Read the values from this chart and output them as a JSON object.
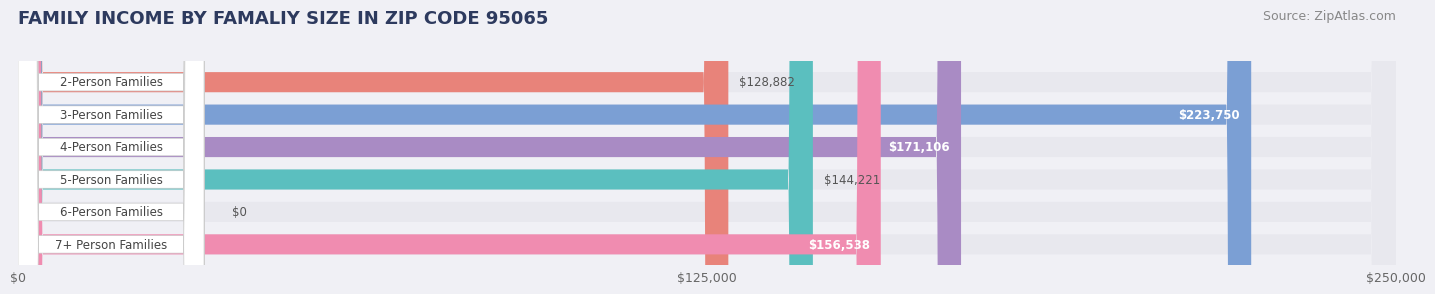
{
  "title": "FAMILY INCOME BY FAMALIY SIZE IN ZIP CODE 95065",
  "source": "Source: ZipAtlas.com",
  "categories": [
    "2-Person Families",
    "3-Person Families",
    "4-Person Families",
    "5-Person Families",
    "6-Person Families",
    "7+ Person Families"
  ],
  "values": [
    128882,
    223750,
    171106,
    144221,
    0,
    156538
  ],
  "bar_colors": [
    "#E8837A",
    "#7B9FD4",
    "#A98BC4",
    "#5BBFBF",
    "#B0B8E8",
    "#F08CB0"
  ],
  "value_labels": [
    "$128,882",
    "$223,750",
    "$171,106",
    "$144,221",
    "$0",
    "$156,538"
  ],
  "label_inside": [
    false,
    true,
    true,
    false,
    false,
    true
  ],
  "xlim": [
    0,
    250000
  ],
  "xticks": [
    0,
    125000,
    250000
  ],
  "xtick_labels": [
    "$0",
    "$125,000",
    "$250,000"
  ],
  "background_color": "#f0f0f5",
  "bar_bg_color": "#e8e8ee",
  "title_color": "#2d3a5e",
  "title_fontsize": 13,
  "source_fontsize": 9,
  "label_fontsize": 8.5,
  "value_fontsize": 8.5,
  "bar_height": 0.62
}
